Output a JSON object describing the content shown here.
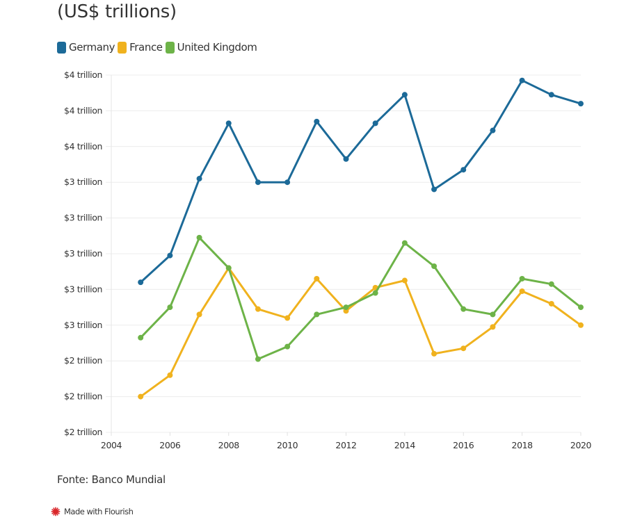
{
  "header": {
    "title": "(US$ trillions)"
  },
  "legend": [
    {
      "label": "Germany",
      "color": "#1c6a98"
    },
    {
      "label": "France",
      "color": "#f0b21e"
    },
    {
      "label": "United Kingdom",
      "color": "#6db348"
    }
  ],
  "footer": {
    "source": "Fonte: Banco Mundial",
    "credit": "Made with Flourish",
    "credit_icon": "flourish-logo-icon",
    "credit_color": "#d9262a"
  },
  "chart_data": {
    "type": "line",
    "title": "(US$ trillions)",
    "xlabel": "",
    "ylabel": "",
    "x": [
      2005,
      2006,
      2007,
      2008,
      2009,
      2010,
      2011,
      2012,
      2013,
      2014,
      2015,
      2016,
      2017,
      2018,
      2019,
      2020
    ],
    "xlim": [
      2004,
      2020
    ],
    "ylim": [
      2.0,
      4.0
    ],
    "x_ticks": [
      2004,
      2006,
      2008,
      2010,
      2012,
      2014,
      2016,
      2018,
      2020
    ],
    "x_tick_labels": [
      "2004",
      "2006",
      "2008",
      "2010",
      "2012",
      "2014",
      "2016",
      "2018",
      "2020"
    ],
    "y_ticks": [
      2.0,
      2.2,
      2.4,
      2.6,
      2.8,
      3.0,
      3.2,
      3.4,
      3.6,
      3.8,
      4.0
    ],
    "y_tick_labels": [
      "$2 trillion",
      "$2 trillion",
      "$2 trillion",
      "$3 trillion",
      "$3 trillion",
      "$3 trillion",
      "$3 trillion",
      "$3 trillion",
      "$4 trillion",
      "$4 trillion",
      "$4 trillion"
    ],
    "grid": "horizontal",
    "legend_position": "top-left",
    "series": [
      {
        "name": "Germany",
        "color": "#1c6a98",
        "values": [
          2.84,
          2.99,
          3.42,
          3.73,
          3.4,
          3.4,
          3.74,
          3.53,
          3.73,
          3.89,
          3.36,
          3.47,
          3.69,
          3.97,
          3.89,
          3.84
        ]
      },
      {
        "name": "France",
        "color": "#f0b21e",
        "values": [
          2.2,
          2.32,
          2.66,
          2.92,
          2.69,
          2.64,
          2.86,
          2.68,
          2.81,
          2.85,
          2.44,
          2.47,
          2.59,
          2.79,
          2.72,
          2.6
        ]
      },
      {
        "name": "United Kingdom",
        "color": "#6db348",
        "values": [
          2.53,
          2.7,
          3.09,
          2.92,
          2.41,
          2.48,
          2.66,
          2.7,
          2.78,
          3.06,
          2.93,
          2.69,
          2.66,
          2.86,
          2.83,
          2.7
        ]
      }
    ]
  }
}
